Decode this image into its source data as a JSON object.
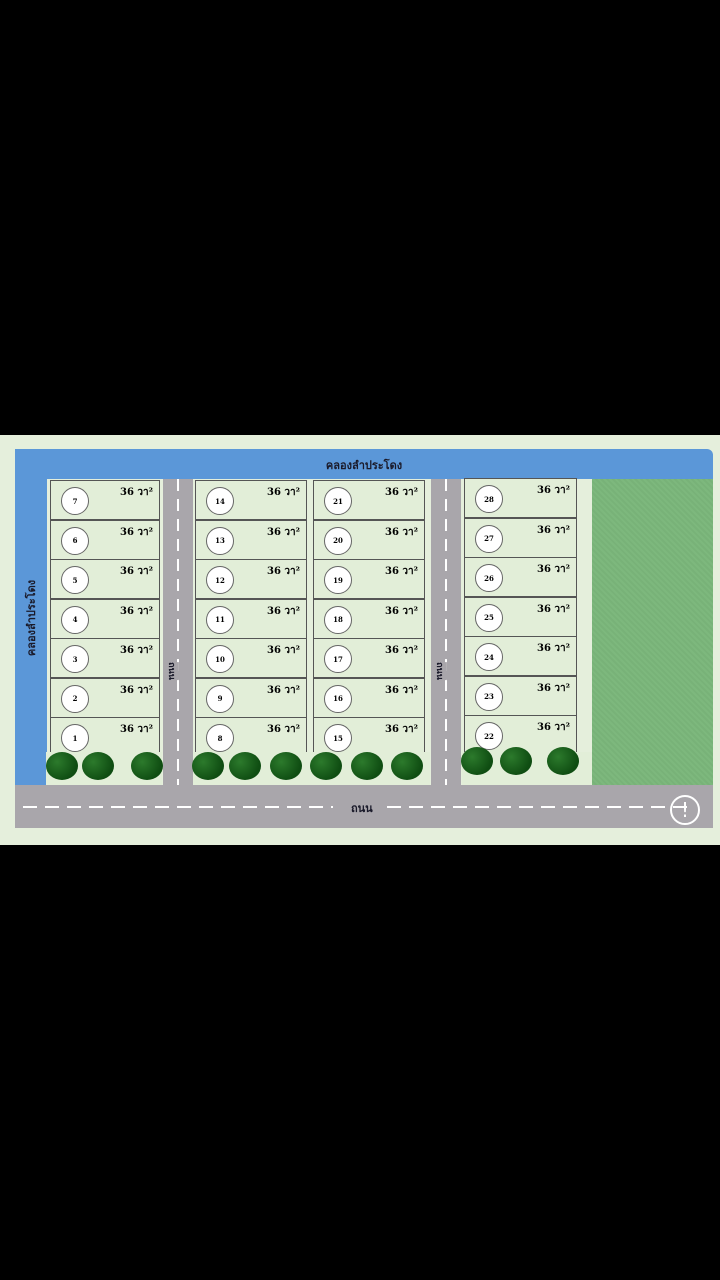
{
  "canal_top_label": "คลองลำประโดง",
  "canal_left_label": "คลองลำประโดง",
  "road_label": "ถนน",
  "side_road_label": "ถนน",
  "plot_area": "36 วา²",
  "columns": [
    {
      "plots": [
        "7",
        "6",
        "5",
        "4",
        "3",
        "2",
        "1"
      ]
    },
    {
      "plots": [
        "14",
        "13",
        "12",
        "11",
        "10",
        "9",
        "8"
      ]
    },
    {
      "plots": [
        "21",
        "20",
        "19",
        "18",
        "17",
        "16",
        "15"
      ]
    },
    {
      "plots": [
        "28",
        "27",
        "26",
        "25",
        "24",
        "23",
        "22"
      ]
    }
  ],
  "colors": {
    "canal": "#5b97d8",
    "road": "#a9a6ab",
    "plot": "#e2eed8",
    "field": "#7db87d",
    "tree": "#0f4d12"
  },
  "info_icon": "exclamation-circle-icon"
}
